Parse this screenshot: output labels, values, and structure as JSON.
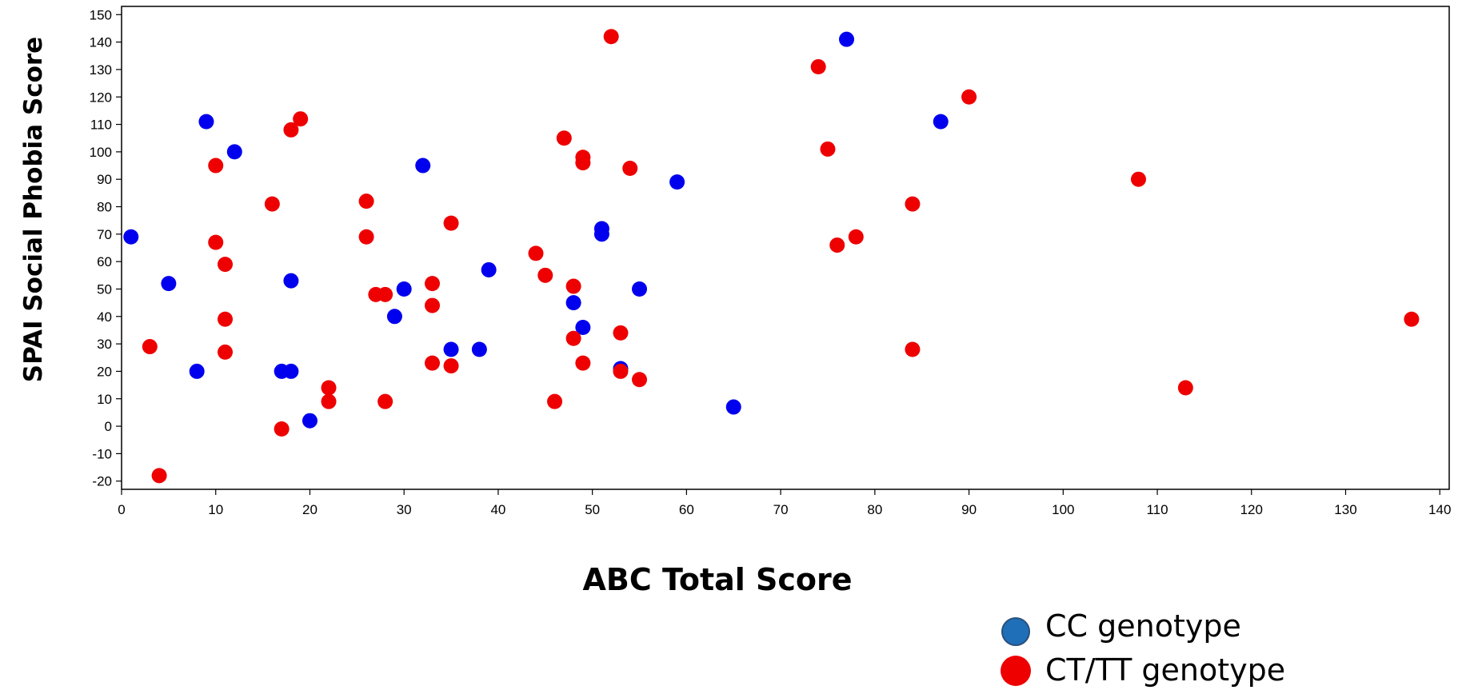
{
  "chart_data": {
    "type": "scatter",
    "title": "",
    "xlabel": "ABC Total Score",
    "ylabel": "SPAI Social Phobia Score",
    "xlim": [
      0,
      141
    ],
    "ylim": [
      -23,
      153
    ],
    "xticks": [
      0,
      10,
      20,
      30,
      40,
      50,
      60,
      70,
      80,
      90,
      100,
      110,
      120,
      130,
      140
    ],
    "yticks": [
      -20,
      -10,
      0,
      10,
      20,
      30,
      40,
      50,
      60,
      70,
      80,
      90,
      100,
      110,
      120,
      130,
      140,
      150
    ],
    "grid": false,
    "legend_position": "bottom-right",
    "series": [
      {
        "name": "CC genotype",
        "color": "#0000ee",
        "legend_color": "#1f6fb8",
        "points": [
          [
            1,
            69
          ],
          [
            5,
            52
          ],
          [
            8,
            20
          ],
          [
            9,
            111
          ],
          [
            12,
            100
          ],
          [
            17,
            20
          ],
          [
            18,
            20
          ],
          [
            18,
            53
          ],
          [
            20,
            2
          ],
          [
            29,
            40
          ],
          [
            30,
            50
          ],
          [
            32,
            95
          ],
          [
            35,
            28
          ],
          [
            38,
            28
          ],
          [
            39,
            57
          ],
          [
            48,
            45
          ],
          [
            49,
            36
          ],
          [
            51,
            70
          ],
          [
            51,
            72
          ],
          [
            53,
            21
          ],
          [
            55,
            50
          ],
          [
            59,
            89
          ],
          [
            65,
            7
          ],
          [
            77,
            141
          ],
          [
            87,
            111
          ]
        ]
      },
      {
        "name": "CT/TT genotype",
        "color": "#ee0000",
        "legend_color": "#ee0000",
        "points": [
          [
            3,
            29
          ],
          [
            4,
            -18
          ],
          [
            10,
            95
          ],
          [
            10,
            67
          ],
          [
            11,
            59
          ],
          [
            11,
            39
          ],
          [
            11,
            27
          ],
          [
            16,
            81
          ],
          [
            17,
            -1
          ],
          [
            18,
            108
          ],
          [
            19,
            112
          ],
          [
            22,
            14
          ],
          [
            22,
            9
          ],
          [
            26,
            82
          ],
          [
            26,
            69
          ],
          [
            27,
            48
          ],
          [
            28,
            48
          ],
          [
            28,
            9
          ],
          [
            33,
            52
          ],
          [
            33,
            44
          ],
          [
            33,
            23
          ],
          [
            35,
            74
          ],
          [
            35,
            22
          ],
          [
            44,
            63
          ],
          [
            45,
            55
          ],
          [
            46,
            9
          ],
          [
            47,
            105
          ],
          [
            48,
            51
          ],
          [
            48,
            32
          ],
          [
            49,
            98
          ],
          [
            49,
            96
          ],
          [
            49,
            23
          ],
          [
            52,
            142
          ],
          [
            53,
            34
          ],
          [
            53,
            20
          ],
          [
            54,
            94
          ],
          [
            55,
            17
          ],
          [
            74,
            131
          ],
          [
            75,
            101
          ],
          [
            76,
            66
          ],
          [
            78,
            69
          ],
          [
            84,
            81
          ],
          [
            84,
            28
          ],
          [
            90,
            120
          ],
          [
            108,
            90
          ],
          [
            113,
            14
          ],
          [
            137,
            39
          ]
        ]
      }
    ]
  }
}
